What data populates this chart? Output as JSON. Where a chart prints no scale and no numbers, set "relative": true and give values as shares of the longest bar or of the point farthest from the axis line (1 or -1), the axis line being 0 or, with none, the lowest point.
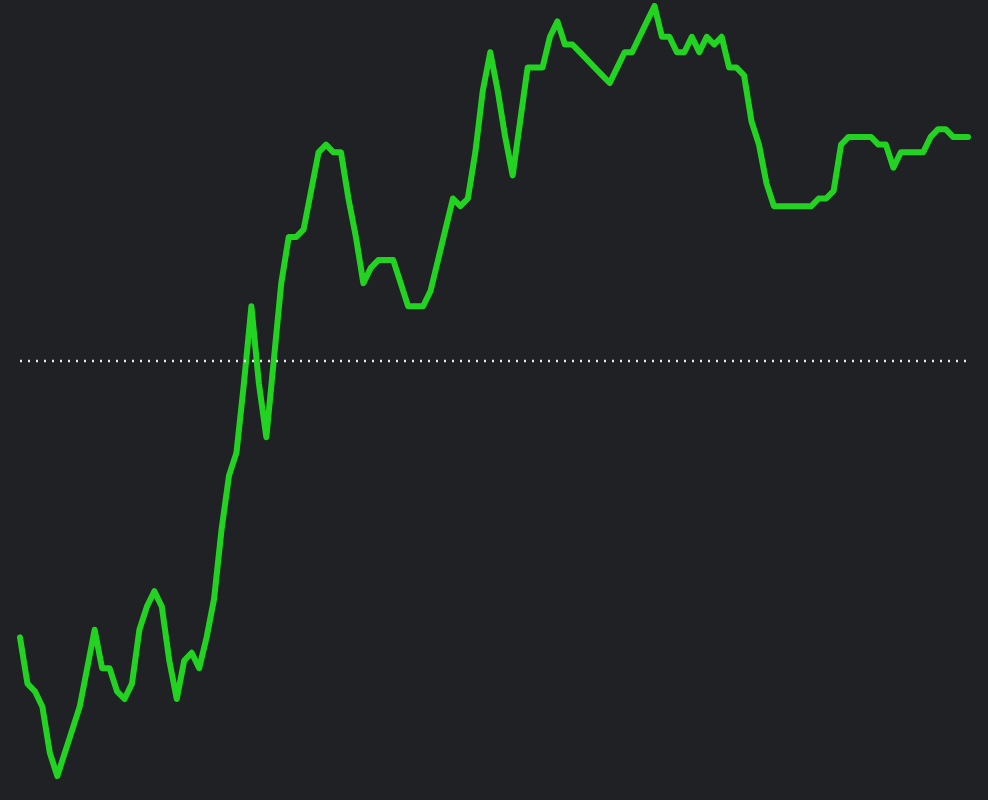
{
  "chart_data": {
    "type": "line",
    "relative": true,
    "marker": "none",
    "line_style": "solid",
    "categories": [
      null,
      null,
      null,
      null,
      null,
      null,
      null,
      null,
      null,
      null,
      null,
      null,
      null,
      null,
      null,
      null,
      null,
      null,
      null,
      null,
      null,
      null,
      null,
      null,
      null,
      null,
      null,
      null,
      null,
      null,
      null,
      null,
      null,
      null,
      null,
      null,
      null,
      null,
      null,
      null,
      null,
      null,
      null,
      null,
      null,
      null,
      null,
      null,
      null,
      null,
      null,
      null,
      null,
      null,
      null,
      null,
      null,
      null,
      null,
      null,
      null,
      null,
      null,
      null,
      null,
      null,
      null,
      null,
      null,
      null,
      null,
      null,
      null,
      null,
      null,
      null,
      null,
      null,
      null,
      null,
      null,
      null,
      null,
      null,
      null,
      null,
      null,
      null,
      null,
      null,
      null,
      null,
      null,
      null,
      null,
      null,
      null,
      null,
      null,
      null,
      null,
      null,
      null,
      null,
      null,
      null,
      null,
      null,
      null,
      null,
      null,
      null,
      null,
      null,
      null,
      null,
      null,
      null,
      null,
      null,
      null,
      null,
      null,
      null,
      null,
      null,
      null,
      null
    ],
    "series": [
      {
        "color": "#22d322",
        "values": [
          0.18,
          0.12,
          0.11,
          0.09,
          0.03,
          0,
          0.03,
          0.06,
          0.09,
          0.14,
          0.19,
          0.14,
          0.14,
          0.11,
          0.1,
          0.12,
          0.19,
          0.22,
          0.24,
          0.22,
          0.15,
          0.1,
          0.15,
          0.16,
          0.14,
          0.18,
          0.23,
          0.32,
          0.39,
          0.42,
          0.51,
          0.61,
          0.51,
          0.44,
          0.54,
          0.64,
          0.7,
          0.7,
          0.71,
          0.76,
          0.81,
          0.82,
          0.81,
          0.81,
          0.75,
          0.7,
          0.64,
          0.66,
          0.67,
          0.67,
          0.67,
          0.64,
          0.61,
          0.61,
          0.61,
          0.63,
          0.67,
          0.71,
          0.75,
          0.74,
          0.75,
          0.81,
          0.89,
          0.94,
          0.89,
          0.83,
          0.78,
          0.85,
          0.92,
          0.92,
          0.92,
          0.96,
          0.98,
          0.95,
          0.95,
          0.94,
          0.93,
          0.92,
          0.91,
          0.9,
          0.92,
          0.94,
          0.94,
          0.96,
          0.98,
          1,
          0.96,
          0.96,
          0.94,
          0.94,
          0.96,
          0.94,
          0.96,
          0.95,
          0.96,
          0.92,
          0.92,
          0.91,
          0.85,
          0.82,
          0.77,
          0.74,
          0.74,
          0.74,
          0.74,
          0.74,
          0.74,
          0.75,
          0.75,
          0.76,
          0.82,
          0.83,
          0.83,
          0.83,
          0.83,
          0.82,
          0.82,
          0.79,
          0.81,
          0.81,
          0.81,
          0.81,
          0.83,
          0.84,
          0.84,
          0.83,
          0.83,
          0.83
        ]
      }
    ],
    "ref_lines": [
      {
        "axis": "y",
        "value": 0.54,
        "color": "#e8e8e8",
        "line_style": "dotted"
      }
    ]
  }
}
